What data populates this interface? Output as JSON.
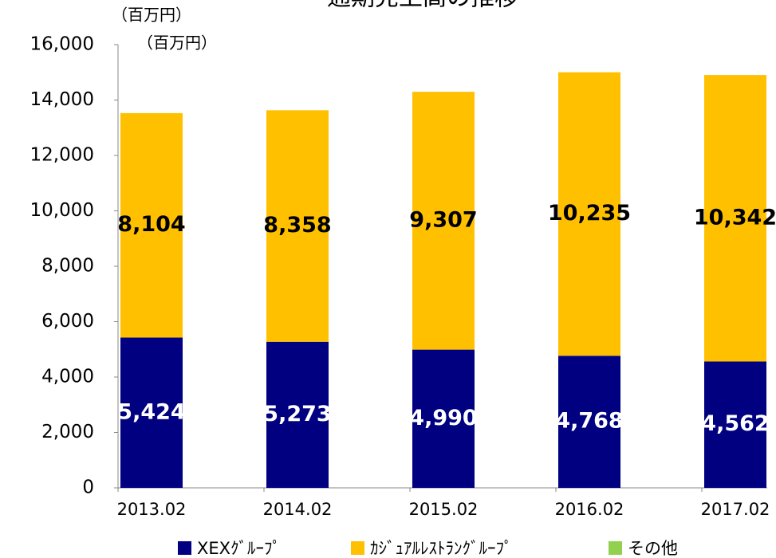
{
  "chart_data": {
    "type": "stacked_bar",
    "title": "通期売上高の推移",
    "unit_labels": [
      "（百万円）",
      "（百万円）"
    ],
    "categories": [
      "2013.02",
      "2014.02",
      "2015.02",
      "2016.02",
      "2017.02"
    ],
    "series": [
      {
        "name": "XEXｸﾞﾙｰﾌﾟ",
        "color": "#000080",
        "label_color": "#ffffff",
        "values": [
          5424,
          5273,
          4990,
          4768,
          4562
        ],
        "value_labels": [
          "5,424",
          "5,273",
          "4,990",
          "4,768",
          "4,562"
        ]
      },
      {
        "name": "ｶｼﾞｭｱﾙﾚｽﾄﾗﾝｸﾞﾙｰﾌﾟ",
        "color": "#ffc000",
        "label_color": "#000000",
        "values": [
          8104,
          8358,
          9307,
          10235,
          10342
        ],
        "value_labels": [
          "8,104",
          "8,358",
          "9,307",
          "10,235",
          "10,342"
        ]
      },
      {
        "name": "その他",
        "color": "#92d050",
        "values": [
          0,
          0,
          0,
          0,
          0
        ]
      }
    ],
    "ylim": [
      0,
      16000
    ],
    "yticks": [
      {
        "value": 0,
        "label": "0"
      },
      {
        "value": 2000,
        "label": "2,000"
      },
      {
        "value": 4000,
        "label": "4,000"
      },
      {
        "value": 6000,
        "label": "6,000"
      },
      {
        "value": 8000,
        "label": "8,000"
      },
      {
        "value": 10000,
        "label": "10,000"
      },
      {
        "value": 12000,
        "label": "12,000"
      },
      {
        "value": 14000,
        "label": "14,000"
      },
      {
        "value": 16000,
        "label": "16,000"
      }
    ],
    "grid": false
  }
}
